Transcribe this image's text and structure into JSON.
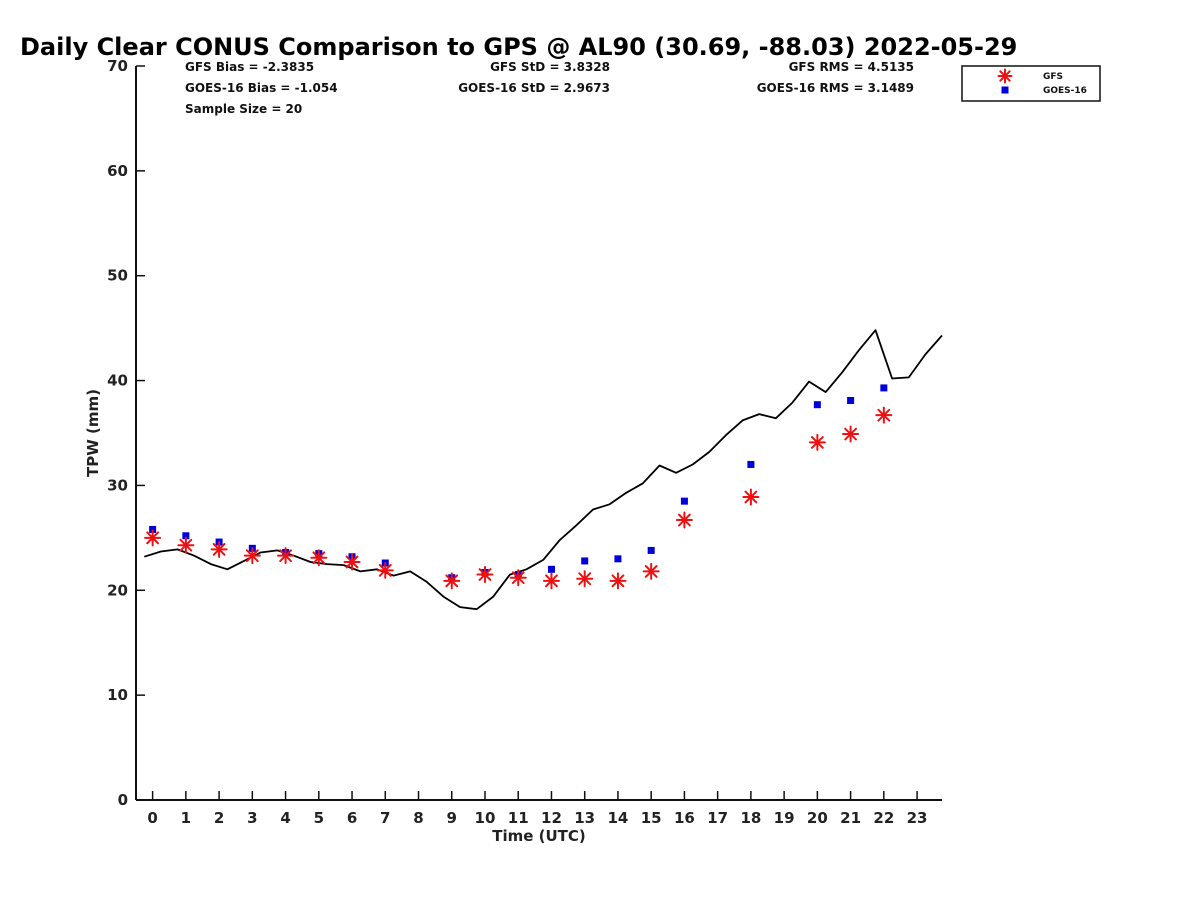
{
  "chart_data": {
    "type": "scatter",
    "title": "Daily Clear CONUS Comparison to GPS @ AL90 (30.69, -88.03) 2022-05-29",
    "xlabel": "Time (UTC)",
    "ylabel": "TPW (mm)",
    "xlim": [
      -0.5,
      23.75
    ],
    "ylim": [
      0,
      70
    ],
    "y_ticks": [
      0,
      10,
      20,
      30,
      40,
      50,
      60,
      70
    ],
    "x_tick_labels": [
      "0",
      "1",
      "2",
      "3",
      "4",
      "5",
      "6",
      "7",
      "8",
      "9",
      "10",
      "11",
      "12",
      "13",
      "14",
      "15",
      "16",
      "17",
      "18",
      "19",
      "20",
      "21",
      "22",
      "23"
    ],
    "grid": false,
    "legend_position": "top-right",
    "stats": {
      "gfs_bias": "GFS Bias = -2.3835",
      "goes_bias": "GOES-16 Bias = -1.054",
      "sample_size": "Sample Size = 20",
      "gfs_std": "GFS StD = 3.8328",
      "goes_std": "GOES-16 StD = 2.9673",
      "gfs_rms": "GFS RMS = 4.5135",
      "goes_rms": "GOES-16 RMS = 3.1489"
    },
    "series": [
      {
        "name": "GFS",
        "marker": "asterisk",
        "color": "#ee1111",
        "points": [
          [
            0,
            25.0
          ],
          [
            1,
            24.3
          ],
          [
            2,
            23.9
          ],
          [
            3,
            23.3
          ],
          [
            4,
            23.3
          ],
          [
            5,
            23.1
          ],
          [
            6,
            22.7
          ],
          [
            7,
            21.9
          ],
          [
            9,
            20.9
          ],
          [
            10,
            21.5
          ],
          [
            11,
            21.2
          ],
          [
            12,
            20.9
          ],
          [
            13,
            21.1
          ],
          [
            14,
            20.9
          ],
          [
            15,
            21.8
          ],
          [
            16,
            26.7
          ],
          [
            18,
            28.9
          ],
          [
            20,
            34.1
          ],
          [
            21,
            34.9
          ],
          [
            22,
            36.7
          ]
        ]
      },
      {
        "name": "GOES-16",
        "marker": "square",
        "color": "#0000dd",
        "points": [
          [
            0,
            25.8
          ],
          [
            1,
            25.2
          ],
          [
            2,
            24.6
          ],
          [
            3,
            24.0
          ],
          [
            4,
            23.6
          ],
          [
            5,
            23.5
          ],
          [
            6,
            23.2
          ],
          [
            7,
            22.6
          ],
          [
            9,
            21.2
          ],
          [
            10,
            21.7
          ],
          [
            11,
            21.5
          ],
          [
            12,
            22.0
          ],
          [
            13,
            22.8
          ],
          [
            14,
            23.0
          ],
          [
            15,
            23.8
          ],
          [
            16,
            28.5
          ],
          [
            18,
            32.0
          ],
          [
            20,
            37.7
          ],
          [
            21,
            38.1
          ],
          [
            22,
            39.3
          ]
        ]
      },
      {
        "name": "GPS",
        "marker": "line",
        "color": "#000000",
        "points": [
          [
            -0.25,
            23.2
          ],
          [
            0.25,
            23.7
          ],
          [
            0.75,
            23.9
          ],
          [
            1.25,
            23.3
          ],
          [
            1.75,
            22.5
          ],
          [
            2.25,
            22.0
          ],
          [
            2.75,
            22.8
          ],
          [
            3.25,
            23.6
          ],
          [
            3.75,
            23.8
          ],
          [
            4.25,
            23.3
          ],
          [
            4.75,
            22.7
          ],
          [
            5.25,
            22.5
          ],
          [
            5.75,
            22.4
          ],
          [
            6.25,
            21.8
          ],
          [
            6.75,
            22.0
          ],
          [
            7.25,
            21.4
          ],
          [
            7.75,
            21.8
          ],
          [
            8.25,
            20.8
          ],
          [
            8.75,
            19.4
          ],
          [
            9.25,
            18.4
          ],
          [
            9.75,
            18.2
          ],
          [
            10.25,
            19.4
          ],
          [
            10.75,
            21.5
          ],
          [
            11.25,
            22.0
          ],
          [
            11.75,
            22.9
          ],
          [
            12.25,
            24.8
          ],
          [
            12.75,
            26.2
          ],
          [
            13.25,
            27.7
          ],
          [
            13.75,
            28.2
          ],
          [
            14.25,
            29.3
          ],
          [
            14.75,
            30.2
          ],
          [
            15.25,
            31.9
          ],
          [
            15.75,
            31.2
          ],
          [
            16.25,
            32.0
          ],
          [
            16.75,
            33.2
          ],
          [
            17.25,
            34.8
          ],
          [
            17.75,
            36.2
          ],
          [
            18.25,
            36.8
          ],
          [
            18.75,
            36.4
          ],
          [
            19.25,
            37.9
          ],
          [
            19.75,
            39.9
          ],
          [
            20.25,
            38.9
          ],
          [
            20.75,
            40.8
          ],
          [
            21.25,
            42.9
          ],
          [
            21.75,
            44.8
          ],
          [
            22.25,
            40.2
          ],
          [
            22.75,
            40.3
          ],
          [
            23.25,
            42.5
          ],
          [
            23.75,
            44.3
          ]
        ]
      }
    ]
  }
}
